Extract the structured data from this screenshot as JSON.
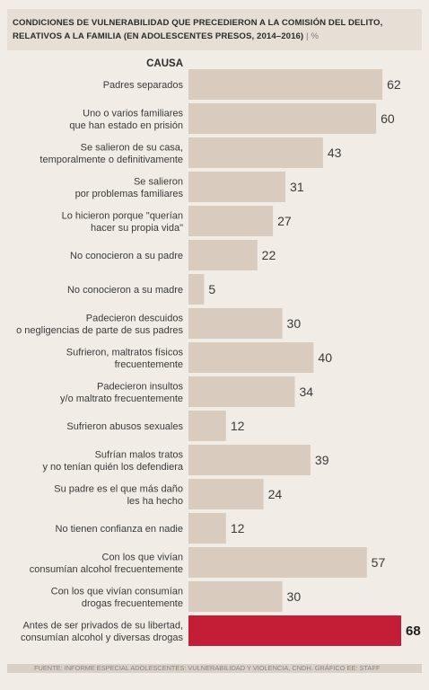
{
  "title": "Condiciones de vulnerabilidad que precedieron a la comisión del delito, relativos a la familia (en adolescentes presos, 2014–2016)",
  "unit": "%",
  "source": "FUENTE: INFORME ESPECIAL ADOLESCENTES: VULNERABILIDAD Y VIOLENCIA, CNDH.   GRÁFICO EE: STAFF",
  "colors": {
    "bar": "#d9cbbd",
    "highlight": "#c41e36",
    "text": "#3a3a3a",
    "background": "#f1ece6"
  },
  "chart_data": {
    "type": "bar",
    "orientation": "horizontal",
    "column_header": "CAUSA",
    "categories": [
      [
        "Padres separados"
      ],
      [
        "Uno o varios familiares",
        "que han estado en prisión"
      ],
      [
        "Se salieron de su casa,",
        "temporalmente o definitivamente"
      ],
      [
        "Se salieron",
        "por problemas familiares"
      ],
      [
        "Lo hicieron porque \"querían",
        "hacer su propia vida\""
      ],
      [
        "No conocieron a su padre"
      ],
      [
        "No conocieron a su madre"
      ],
      [
        "Padecieron descuidos",
        "o negligencias de parte de sus padres"
      ],
      [
        "Sufrieron, maltratos físicos",
        "frecuentemente"
      ],
      [
        "Padecieron insultos",
        "y/o maltrato frecuentemente"
      ],
      [
        "Sufrieron abusos sexuales"
      ],
      [
        "Sufrían malos tratos",
        "y no tenían quién los defendiera"
      ],
      [
        "Su padre es el que más daño",
        "les ha hecho"
      ],
      [
        "No tienen confianza en nadie"
      ],
      [
        "Con los que vivían",
        "consumían alcohol frecuentemente"
      ],
      [
        "Con los que vivían consumían",
        "drogas frecuentemente"
      ],
      [
        "Antes de ser privados de su libertad,",
        "consumían alcohol y diversas drogas"
      ]
    ],
    "values": [
      62,
      60,
      43,
      31,
      27,
      22,
      5,
      30,
      40,
      34,
      12,
      39,
      24,
      12,
      57,
      30,
      68
    ],
    "highlight_index": 16,
    "xlim": [
      0,
      68
    ]
  }
}
